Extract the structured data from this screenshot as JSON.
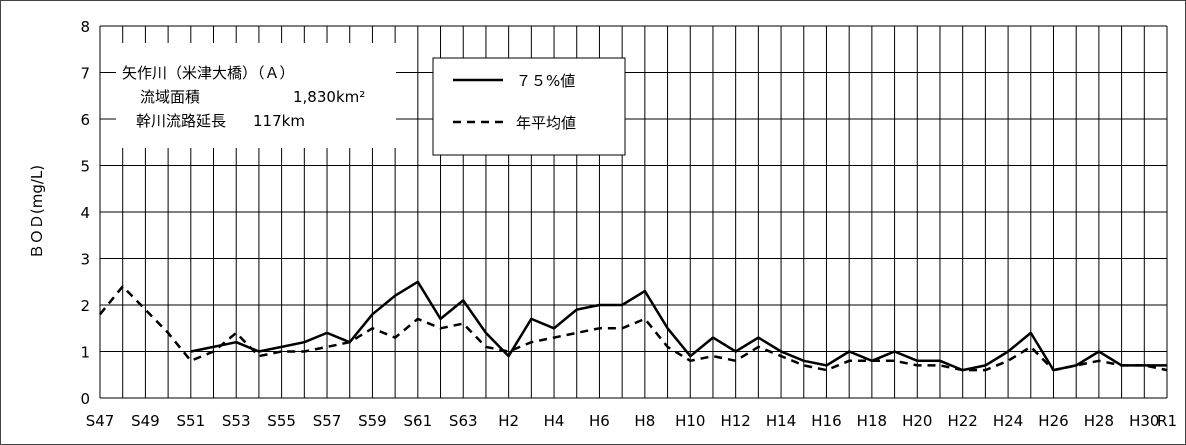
{
  "chart_data": {
    "type": "line",
    "ylabel": "ＢＯＤ(mg/L)",
    "ylim": [
      0,
      8
    ],
    "yticks": [
      "0",
      "1",
      "2",
      "3",
      "4",
      "5",
      "6",
      "7",
      "8"
    ],
    "x_tick_labels": [
      "S47",
      "S49",
      "S51",
      "S53",
      "S55",
      "S57",
      "S59",
      "S61",
      "S63",
      "H2",
      "H4",
      "H6",
      "H8",
      "H10",
      "H12",
      "H14",
      "H16",
      "H18",
      "H20",
      "H22",
      "H24",
      "H26",
      "H28",
      "H30",
      "R1"
    ],
    "x": [
      "S47",
      "S48",
      "S49",
      "S50",
      "S51",
      "S52",
      "S53",
      "S54",
      "S55",
      "S56",
      "S57",
      "S58",
      "S59",
      "S60",
      "S61",
      "S62",
      "S63",
      "H1",
      "H2",
      "H3",
      "H4",
      "H5",
      "H6",
      "H7",
      "H8",
      "H9",
      "H10",
      "H11",
      "H12",
      "H13",
      "H14",
      "H15",
      "H16",
      "H17",
      "H18",
      "H19",
      "H20",
      "H21",
      "H22",
      "H23",
      "H24",
      "H25",
      "H26",
      "H27",
      "H28",
      "H29",
      "H30",
      "R1"
    ],
    "grid": true,
    "legend_position": "top-left",
    "series": [
      {
        "name": "７５%値",
        "style": "solid",
        "color": "#000000",
        "values": [
          null,
          null,
          null,
          null,
          1.0,
          1.1,
          1.2,
          1.0,
          1.1,
          1.2,
          1.4,
          1.2,
          1.8,
          2.2,
          2.5,
          1.7,
          2.1,
          1.4,
          0.9,
          1.7,
          1.5,
          1.9,
          2.0,
          2.0,
          2.3,
          1.5,
          0.9,
          1.3,
          1.0,
          1.3,
          1.0,
          0.8,
          0.7,
          1.0,
          0.8,
          1.0,
          0.8,
          0.8,
          0.6,
          0.7,
          1.0,
          1.4,
          0.6,
          0.7,
          1.0,
          0.7,
          0.7,
          0.7
        ]
      },
      {
        "name": "年平均値",
        "style": "dashed",
        "color": "#000000",
        "values": [
          1.8,
          2.4,
          1.9,
          1.4,
          0.8,
          1.0,
          1.4,
          0.9,
          1.0,
          1.0,
          1.1,
          1.2,
          1.5,
          1.3,
          1.7,
          1.5,
          1.6,
          1.1,
          1.0,
          1.2,
          1.3,
          1.4,
          1.5,
          1.5,
          1.7,
          1.1,
          0.8,
          0.9,
          0.8,
          1.1,
          0.9,
          0.7,
          0.6,
          0.8,
          0.8,
          0.8,
          0.7,
          0.7,
          0.6,
          0.6,
          0.8,
          1.1,
          0.6,
          0.7,
          0.8,
          0.7,
          0.7,
          0.6
        ]
      }
    ]
  },
  "info_box": {
    "line1": "矢作川（米津大橋）（Ａ）",
    "line2_label": "流域面積",
    "line2_value": "1,830km²",
    "line3_label": "幹川流路延長",
    "line3_value": "117km"
  }
}
